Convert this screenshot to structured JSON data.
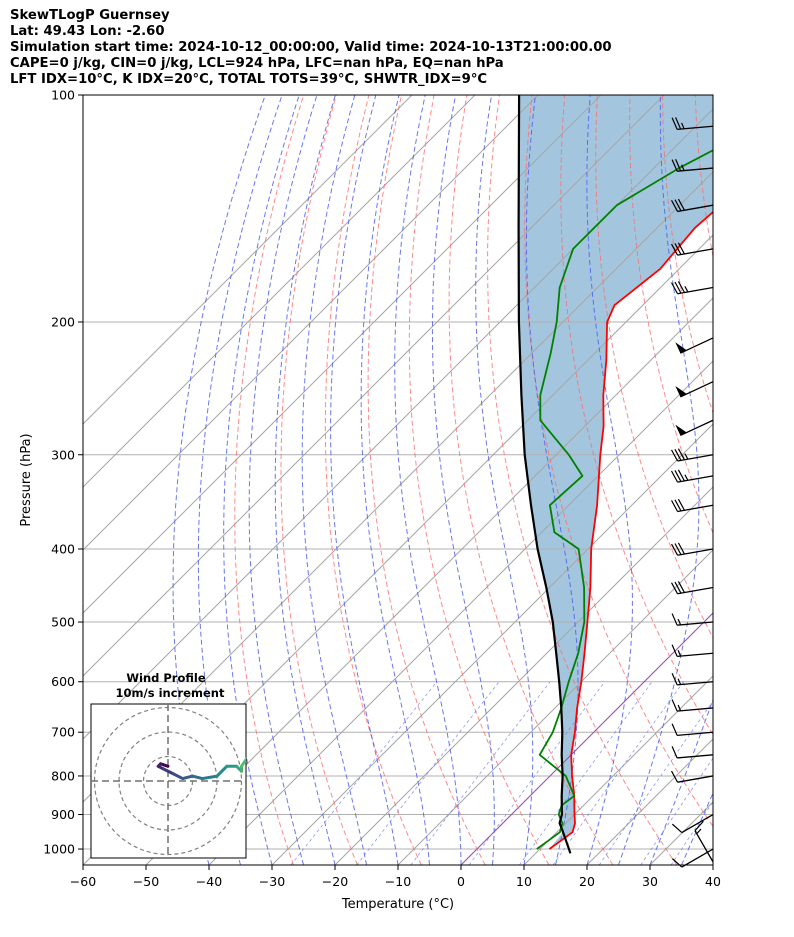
{
  "header": {
    "line1": "SkewTLogP Guernsey",
    "line2": "Lat: 49.43   Lon: -2.60",
    "line3": "Simulation start time: 2024-10-12_00:00:00, Valid time: 2024-10-13T21:00:00.00",
    "line4": "CAPE=0 j/kg, CIN=0 j/kg, LCL=924 hPa, LFC=nan hPa, EQ=nan hPa",
    "line5": "LFT IDX=10°C, K IDX=20°C, TOTAL TOTS=39°C, SHWTR_IDX=9°C"
  },
  "colors": {
    "temperature": "#ff0000",
    "dewpoint": "#008000",
    "parcel": "#000000",
    "cape_fill": "#a3c6de",
    "dry_adiabat": "#ff6b6b",
    "moist_adiabat": "#4f5ff0",
    "mixing_ratio": "#6b7cff",
    "isotherm": "#a6a6a6",
    "freezing_line": "#a040c0"
  },
  "chart_data": {
    "type": "line",
    "xlabel": "Temperature (°C)",
    "ylabel": "Pressure (hPa)",
    "x_ticks": [
      -60,
      -50,
      -40,
      -30,
      -20,
      -10,
      0,
      10,
      20,
      30,
      40
    ],
    "x_tick_labels": [
      "−60",
      "−50",
      "−40",
      "−30",
      "−20",
      "−10",
      "0",
      "10",
      "20",
      "30",
      "40"
    ],
    "y_ticks": [
      100,
      200,
      300,
      400,
      500,
      600,
      700,
      800,
      900,
      1000
    ],
    "y_tick_labels": [
      "100",
      "200",
      "300",
      "400",
      "500",
      "600",
      "700",
      "800",
      "900",
      "1000"
    ],
    "xlim": [
      -60,
      40
    ],
    "ylim": [
      1050,
      100
    ],
    "y_scale": "log",
    "skew_degrees": 45,
    "grid": true,
    "series": [
      {
        "key": "temperature",
        "pressure": [
          1000,
          975,
          950,
          925,
          900,
          875,
          850,
          800,
          750,
          700,
          650,
          600,
          550,
          500,
          450,
          400,
          350,
          300,
          275,
          250,
          225,
          200,
          190,
          170,
          150,
          140,
          125,
          115,
          100
        ],
        "values": [
          11.5,
          12.0,
          12.5,
          11.5,
          10.0,
          8.5,
          7.0,
          3.5,
          0.0,
          -3.0,
          -6.5,
          -10.0,
          -14.0,
          -18.5,
          -23.5,
          -29.5,
          -35.5,
          -43.0,
          -47.0,
          -52.0,
          -57.0,
          -63.0,
          -64.5,
          -63.0,
          -64.0,
          -63.5,
          -61.5,
          -60.5,
          -61.0
        ]
      },
      {
        "key": "dewpoint",
        "pressure": [
          1000,
          975,
          950,
          925,
          900,
          875,
          850,
          800,
          750,
          700,
          650,
          600,
          550,
          500,
          450,
          400,
          380,
          350,
          320,
          300,
          270,
          250,
          220,
          200,
          180,
          160,
          140,
          125,
          110,
          100
        ],
        "values": [
          9.5,
          10.0,
          10.5,
          9.5,
          7.5,
          6.5,
          7.0,
          2.5,
          -5.0,
          -6.5,
          -9.0,
          -12.0,
          -15.0,
          -19.0,
          -24.5,
          -31.5,
          -38.0,
          -43.0,
          -42.5,
          -48.0,
          -58.0,
          -62.0,
          -67.0,
          -71.0,
          -76.0,
          -80.0,
          -80.0,
          -76.0,
          -70.0,
          -65.0
        ]
      },
      {
        "key": "parcel",
        "pressure": [
          1013,
          950,
          924,
          900,
          850,
          800,
          750,
          700,
          650,
          600,
          550,
          500,
          450,
          400,
          350,
          300,
          250,
          200,
          150,
          100
        ],
        "values": [
          15.5,
          11.0,
          9.0,
          8.0,
          5.0,
          2.0,
          -1.5,
          -5.0,
          -9.0,
          -13.5,
          -18.5,
          -24.0,
          -30.5,
          -38.0,
          -46.0,
          -55.0,
          -65.0,
          -77.0,
          -92.0,
          -113.0
        ]
      }
    ],
    "wind_barbs": {
      "pressure": [
        1040,
        1000,
        900,
        800,
        750,
        700,
        650,
        600,
        550,
        500,
        450,
        400,
        350,
        320,
        300,
        270,
        240,
        210,
        180,
        160,
        140,
        125,
        110
      ],
      "speed_kt": [
        15,
        10,
        10,
        10,
        10,
        10,
        15,
        15,
        15,
        15,
        30,
        30,
        30,
        35,
        35,
        50,
        50,
        50,
        35,
        30,
        30,
        25,
        25
      ],
      "direction_deg": [
        330,
        240,
        240,
        260,
        265,
        265,
        265,
        265,
        265,
        265,
        260,
        260,
        260,
        260,
        260,
        245,
        245,
        245,
        260,
        260,
        260,
        265,
        265
      ]
    },
    "inset": {
      "title": "Wind Profile",
      "subtitle": "10m/s increment",
      "rings_ms": [
        10,
        20,
        30
      ],
      "u": [
        0,
        -3,
        -4,
        -2,
        2,
        6,
        10,
        14,
        20,
        24,
        28,
        30,
        30,
        32,
        35,
        37,
        38,
        42,
        45
      ],
      "v": [
        6,
        7,
        6,
        5,
        3,
        1,
        2,
        1,
        2,
        6,
        6,
        4,
        6,
        9,
        10,
        10,
        6,
        4,
        0
      ]
    }
  }
}
